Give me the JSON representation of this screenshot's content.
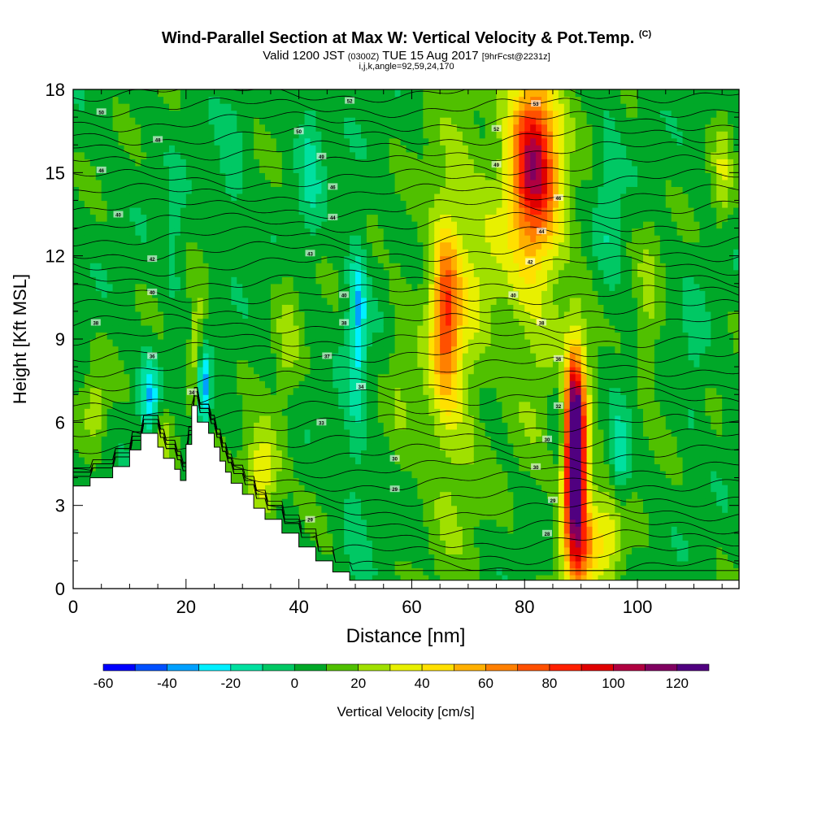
{
  "chart_data": {
    "type": "heatmap",
    "title": "Wind-Parallel Section at Max W: Vertical Velocity & Pot.Temp.",
    "title_mark": "(C)",
    "subtitle_main": "Valid 1200 JST",
    "subtitle_z": "(0300Z)",
    "subtitle_date": "TUE 15 Aug 2017",
    "subtitle_fcst": "[9hrFcst@2231z]",
    "subtitle2": "i,j,k,angle=92,59,24,170",
    "xlabel": "Distance [nm]",
    "ylabel": "Height [Kft MSL]",
    "xlim": [
      0,
      118
    ],
    "ylim": [
      0,
      18
    ],
    "x_ticks": [
      "0",
      "20",
      "40",
      "60",
      "80",
      "100"
    ],
    "y_ticks": [
      "0",
      "3",
      "6",
      "9",
      "12",
      "15",
      "18"
    ],
    "colorbar": {
      "label": "Vertical Velocity [cm/s]",
      "tick_labels": [
        "-60",
        "-40",
        "-20",
        "0",
        "20",
        "40",
        "60",
        "80",
        "100",
        "120"
      ],
      "boundaries": [
        -60,
        -50,
        -40,
        -30,
        -20,
        -10,
        0,
        10,
        20,
        30,
        40,
        50,
        60,
        70,
        80,
        90,
        100,
        110,
        120,
        130
      ],
      "colors": [
        "#0000ff",
        "#0050ff",
        "#00a0ff",
        "#00f0ff",
        "#00e0a0",
        "#00c864",
        "#00a828",
        "#50c000",
        "#a0e000",
        "#e8f000",
        "#ffe000",
        "#ffb000",
        "#ff8000",
        "#ff5000",
        "#ff2000",
        "#e00000",
        "#b00040",
        "#800060",
        "#500080"
      ]
    },
    "grid": false,
    "terrain_profile": {
      "x": [
        0,
        3,
        3,
        7,
        7,
        10,
        10,
        12,
        12,
        15,
        15,
        16,
        16,
        18,
        18,
        19,
        19,
        20,
        20,
        21,
        21,
        22,
        22,
        24,
        24,
        25,
        25,
        26,
        26,
        27,
        27,
        28,
        28,
        30,
        30,
        32,
        32,
        34,
        34,
        37,
        37,
        40,
        40,
        43,
        43,
        46,
        46,
        49,
        49,
        50,
        118
      ],
      "h": [
        3.7,
        3.7,
        4.0,
        4.0,
        4.4,
        4.4,
        5.0,
        5.0,
        5.6,
        5.6,
        5.1,
        5.1,
        4.7,
        4.7,
        4.3,
        4.3,
        3.9,
        3.9,
        5.2,
        5.2,
        6.6,
        6.6,
        6.0,
        6.0,
        5.6,
        5.6,
        5.1,
        5.1,
        4.6,
        4.6,
        4.2,
        4.2,
        3.8,
        3.8,
        3.4,
        3.4,
        2.9,
        2.9,
        2.5,
        2.5,
        2.0,
        2.0,
        1.5,
        1.5,
        1.0,
        1.0,
        0.6,
        0.6,
        0.3,
        0.3,
        0.3
      ]
    },
    "w_features": [
      {
        "x": 89,
        "z": 5.0,
        "sx": 1.1,
        "sz": 2.0,
        "value": 125
      },
      {
        "x": 89,
        "z": 4.0,
        "sx": 2.0,
        "sz": 3.4,
        "value": 50
      },
      {
        "x": 81.5,
        "z": 15.5,
        "sx": 2.8,
        "sz": 2.0,
        "value": 75
      },
      {
        "x": 82,
        "z": 13.5,
        "sx": 4.0,
        "sz": 5.0,
        "value": 30
      },
      {
        "x": 66,
        "z": 10.0,
        "sx": 1.6,
        "sz": 2.0,
        "value": 50
      },
      {
        "x": 67,
        "z": 9.0,
        "sx": 3.6,
        "sz": 5.0,
        "value": 28
      },
      {
        "x": 73,
        "z": 12.5,
        "sx": 3.0,
        "sz": 2.5,
        "value": 14
      },
      {
        "x": 33.5,
        "z": 4.2,
        "sx": 2.2,
        "sz": 1.2,
        "value": 38
      },
      {
        "x": 22,
        "z": 8.5,
        "sx": 1.0,
        "sz": 1.5,
        "value": 30
      },
      {
        "x": 16,
        "z": 5.5,
        "sx": 1.6,
        "sz": 0.8,
        "value": 28
      },
      {
        "x": 4,
        "z": 6.5,
        "sx": 1.5,
        "sz": 1.0,
        "value": 20
      },
      {
        "x": 95,
        "z": 2.0,
        "sx": 2.2,
        "sz": 1.2,
        "value": 28
      },
      {
        "x": 90,
        "z": 1.5,
        "sx": 2.2,
        "sz": 1.2,
        "value": 30
      },
      {
        "x": 23,
        "z": 7.2,
        "sx": 0.8,
        "sz": 1.1,
        "value": -52
      },
      {
        "x": 13.5,
        "z": 6.8,
        "sx": 1.2,
        "sz": 1.1,
        "value": -35
      },
      {
        "x": 50.5,
        "z": 10.0,
        "sx": 1.0,
        "sz": 1.6,
        "value": -28
      },
      {
        "x": 50,
        "z": 6.5,
        "sx": 1.5,
        "sz": 4.0,
        "value": -14
      },
      {
        "x": 86,
        "z": 6.0,
        "sx": 1.2,
        "sz": 1.6,
        "value": -22
      },
      {
        "x": 97,
        "z": 4.5,
        "sx": 1.2,
        "sz": 1.2,
        "value": -25
      },
      {
        "x": 42,
        "z": 15.5,
        "sx": 1.5,
        "sz": 2.0,
        "value": -18
      },
      {
        "x": 28,
        "z": 15.0,
        "sx": 1.5,
        "sz": 1.5,
        "value": -14
      },
      {
        "x": 18,
        "z": 12.5,
        "sx": 1.2,
        "sz": 1.5,
        "value": -12
      },
      {
        "x": 95,
        "z": 14.0,
        "sx": 1.5,
        "sz": 2.5,
        "value": -14
      },
      {
        "x": 115,
        "z": 15.0,
        "sx": 1.2,
        "sz": 1.5,
        "value": 20
      },
      {
        "x": 110,
        "z": 8.0,
        "sx": 1.5,
        "sz": 2.0,
        "value": -10
      },
      {
        "x": 102,
        "z": 10.0,
        "sx": 1.5,
        "sz": 2.5,
        "value": 15
      },
      {
        "x": 58,
        "z": 8.0,
        "sx": 1.5,
        "sz": 2.5,
        "value": 12
      },
      {
        "x": 38,
        "z": 9.0,
        "sx": 1.5,
        "sz": 2.0,
        "value": 15
      }
    ],
    "isentrope_count": 35,
    "contour_labels": [
      {
        "text": "50",
        "x": 5,
        "z": 17.2
      },
      {
        "text": "48",
        "x": 15,
        "z": 16.2
      },
      {
        "text": "46",
        "x": 5,
        "z": 15.1
      },
      {
        "text": "50",
        "x": 40,
        "z": 16.5
      },
      {
        "text": "52",
        "x": 49,
        "z": 17.6
      },
      {
        "text": "49",
        "x": 44,
        "z": 15.6
      },
      {
        "text": "46",
        "x": 46,
        "z": 14.5
      },
      {
        "text": "44",
        "x": 46,
        "z": 13.4
      },
      {
        "text": "43",
        "x": 42,
        "z": 12.1
      },
      {
        "text": "40",
        "x": 8,
        "z": 13.5
      },
      {
        "text": "42",
        "x": 14,
        "z": 11.9
      },
      {
        "text": "40",
        "x": 14,
        "z": 10.7
      },
      {
        "text": "40",
        "x": 48,
        "z": 10.6
      },
      {
        "text": "38",
        "x": 4,
        "z": 9.6
      },
      {
        "text": "38",
        "x": 48,
        "z": 9.6
      },
      {
        "text": "37",
        "x": 45,
        "z": 8.4
      },
      {
        "text": "34",
        "x": 51,
        "z": 7.3
      },
      {
        "text": "36",
        "x": 14,
        "z": 8.4
      },
      {
        "text": "34",
        "x": 21,
        "z": 7.1
      },
      {
        "text": "33",
        "x": 44,
        "z": 6.0
      },
      {
        "text": "30",
        "x": 57,
        "z": 4.7
      },
      {
        "text": "29",
        "x": 57,
        "z": 3.6
      },
      {
        "text": "29",
        "x": 42,
        "z": 2.5
      },
      {
        "text": "28",
        "x": 84,
        "z": 2.0
      },
      {
        "text": "53",
        "x": 82,
        "z": 17.5
      },
      {
        "text": "52",
        "x": 75,
        "z": 16.6
      },
      {
        "text": "49",
        "x": 75,
        "z": 15.3
      },
      {
        "text": "46",
        "x": 86,
        "z": 14.1
      },
      {
        "text": "44",
        "x": 83,
        "z": 12.9
      },
      {
        "text": "42",
        "x": 81,
        "z": 11.8
      },
      {
        "text": "40",
        "x": 78,
        "z": 10.6
      },
      {
        "text": "38",
        "x": 83,
        "z": 9.6
      },
      {
        "text": "36",
        "x": 86,
        "z": 8.3
      },
      {
        "text": "32",
        "x": 86,
        "z": 6.6
      },
      {
        "text": "30",
        "x": 84,
        "z": 5.4
      },
      {
        "text": "30",
        "x": 82,
        "z": 4.4
      },
      {
        "text": "29",
        "x": 85,
        "z": 3.2
      }
    ]
  }
}
